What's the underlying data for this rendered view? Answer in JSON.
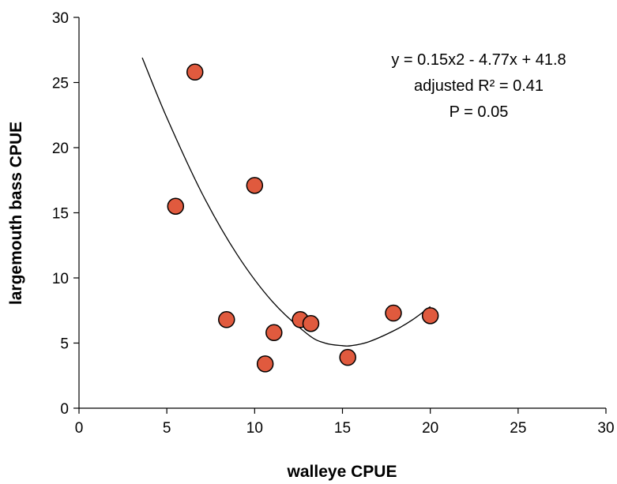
{
  "chart_data": {
    "type": "scatter",
    "xlabel": "walleye CPUE",
    "ylabel": "largemouth bass CPUE",
    "xlim": [
      0,
      30
    ],
    "ylim": [
      0,
      30
    ],
    "xticks": [
      "0",
      "5",
      "10",
      "15",
      "20",
      "25",
      "30"
    ],
    "yticks": [
      "0",
      "5",
      "10",
      "15",
      "20",
      "25",
      "30"
    ],
    "grid": false,
    "points": [
      {
        "x": 6.6,
        "y": 25.8
      },
      {
        "x": 5.5,
        "y": 15.5
      },
      {
        "x": 10.0,
        "y": 17.1
      },
      {
        "x": 8.4,
        "y": 6.8
      },
      {
        "x": 11.1,
        "y": 5.8
      },
      {
        "x": 10.6,
        "y": 3.4
      },
      {
        "x": 12.6,
        "y": 6.8
      },
      {
        "x": 13.2,
        "y": 6.5
      },
      {
        "x": 15.3,
        "y": 3.9
      },
      {
        "x": 17.9,
        "y": 7.3
      },
      {
        "x": 20.0,
        "y": 7.1
      }
    ],
    "marker_color": "#e05a3e",
    "marker_edge_color": "#000000",
    "fit": {
      "type": "quadratic",
      "x_range": [
        3.6,
        20.0
      ],
      "samples": [
        {
          "x": 3.6,
          "y": 26.9
        },
        {
          "x": 5.0,
          "y": 22.3
        },
        {
          "x": 7.0,
          "y": 16.5
        },
        {
          "x": 9.0,
          "y": 11.8
        },
        {
          "x": 11.0,
          "y": 8.2
        },
        {
          "x": 13.0,
          "y": 5.7
        },
        {
          "x": 14.0,
          "y": 5.0
        },
        {
          "x": 15.0,
          "y": 4.8
        },
        {
          "x": 15.5,
          "y": 4.8
        },
        {
          "x": 16.5,
          "y": 5.1
        },
        {
          "x": 18.0,
          "y": 6.0
        },
        {
          "x": 19.0,
          "y": 6.8
        },
        {
          "x": 20.0,
          "y": 7.8
        }
      ]
    },
    "annotations": [
      "y = 0.15x2 - 4.77x + 41.8",
      "adjusted R² = 0.41",
      "P = 0.05"
    ]
  }
}
